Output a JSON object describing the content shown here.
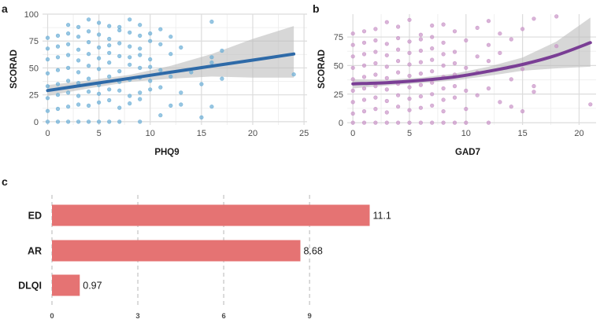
{
  "chart_data": [
    {
      "panel": "a",
      "type": "scatter",
      "xlabel": "PHQ9",
      "ylabel": "SCORAD",
      "xlim": [
        -0.5,
        25.3
      ],
      "ylim": [
        -3,
        100
      ],
      "xticks": [
        0,
        5,
        10,
        15,
        20,
        25
      ],
      "yticks": [
        0,
        25,
        50,
        75,
        100
      ],
      "point_color": "#6baed6",
      "line_color": "#2e6aa8",
      "band_color": "#bdbdbd",
      "fit": {
        "x": [
          0,
          4,
          8,
          12,
          16,
          20,
          24
        ],
        "y": [
          29,
          34.7,
          40.3,
          46,
          51.7,
          57.3,
          63
        ]
      },
      "ci_low": [
        24,
        31,
        37,
        40,
        42,
        41,
        41
      ],
      "ci_high": [
        34,
        38.5,
        43.5,
        52,
        63,
        77,
        89
      ],
      "points": [
        [
          0,
          0
        ],
        [
          1,
          0
        ],
        [
          2,
          0
        ],
        [
          3,
          0
        ],
        [
          4,
          0
        ],
        [
          5,
          0
        ],
        [
          6,
          0
        ],
        [
          7,
          0
        ],
        [
          9,
          0
        ],
        [
          15,
          4
        ],
        [
          11,
          6
        ],
        [
          0,
          10
        ],
        [
          1,
          12
        ],
        [
          2,
          14
        ],
        [
          3,
          16
        ],
        [
          4,
          15
        ],
        [
          5,
          18
        ],
        [
          6,
          20
        ],
        [
          7,
          13
        ],
        [
          8,
          17
        ],
        [
          9,
          21
        ],
        [
          12,
          15
        ],
        [
          13,
          16
        ],
        [
          16,
          14
        ],
        [
          0,
          22
        ],
        [
          1,
          25
        ],
        [
          2,
          27
        ],
        [
          3,
          24
        ],
        [
          4,
          28
        ],
        [
          5,
          26
        ],
        [
          6,
          30
        ],
        [
          7,
          29
        ],
        [
          8,
          24
        ],
        [
          9,
          27
        ],
        [
          10,
          30
        ],
        [
          11,
          32
        ],
        [
          13,
          27
        ],
        [
          15,
          35
        ],
        [
          0,
          33
        ],
        [
          1,
          35
        ],
        [
          2,
          38
        ],
        [
          3,
          36
        ],
        [
          4,
          40
        ],
        [
          5,
          34
        ],
        [
          6,
          42
        ],
        [
          7,
          37
        ],
        [
          8,
          39
        ],
        [
          9,
          41
        ],
        [
          10,
          38
        ],
        [
          12,
          42
        ],
        [
          17,
          40
        ],
        [
          0,
          45
        ],
        [
          1,
          48
        ],
        [
          2,
          50
        ],
        [
          3,
          46
        ],
        [
          4,
          52
        ],
        [
          5,
          49
        ],
        [
          6,
          55
        ],
        [
          7,
          47
        ],
        [
          8,
          53
        ],
        [
          9,
          50
        ],
        [
          10,
          51
        ],
        [
          11,
          48
        ],
        [
          14,
          46
        ],
        [
          16,
          55
        ],
        [
          24,
          44
        ],
        [
          0,
          58
        ],
        [
          1,
          60
        ],
        [
          2,
          62
        ],
        [
          3,
          57
        ],
        [
          4,
          63
        ],
        [
          5,
          59
        ],
        [
          6,
          64
        ],
        [
          7,
          61
        ],
        [
          8,
          60
        ],
        [
          9,
          62
        ],
        [
          10,
          58
        ],
        [
          12,
          63
        ],
        [
          16,
          60
        ],
        [
          0,
          68
        ],
        [
          1,
          70
        ],
        [
          2,
          72
        ],
        [
          3,
          67
        ],
        [
          4,
          74
        ],
        [
          5,
          69
        ],
        [
          6,
          71
        ],
        [
          7,
          73
        ],
        [
          8,
          70
        ],
        [
          9,
          68
        ],
        [
          10,
          75
        ],
        [
          11,
          72
        ],
        [
          13,
          69
        ],
        [
          17,
          66
        ],
        [
          0,
          78
        ],
        [
          1,
          80
        ],
        [
          2,
          82
        ],
        [
          3,
          79
        ],
        [
          4,
          84
        ],
        [
          5,
          81
        ],
        [
          6,
          77
        ],
        [
          7,
          85
        ],
        [
          8,
          83
        ],
        [
          9,
          80
        ],
        [
          10,
          82
        ],
        [
          12,
          79
        ],
        [
          2,
          90
        ],
        [
          4,
          95
        ],
        [
          5,
          92
        ],
        [
          7,
          88
        ],
        [
          8,
          95
        ],
        [
          9,
          90
        ],
        [
          11,
          86
        ],
        [
          16,
          93
        ],
        [
          3,
          88
        ],
        [
          6,
          89
        ]
      ],
      "label": "a"
    },
    {
      "panel": "b",
      "type": "scatter",
      "xlabel": "GAD7",
      "ylabel": "SCORAD",
      "xlim": [
        -0.5,
        21.5
      ],
      "ylim": [
        -2,
        95
      ],
      "xticks": [
        0,
        5,
        10,
        15,
        20
      ],
      "yticks": [
        0,
        25,
        50,
        75
      ],
      "point_color": "#c994c7",
      "line_color": "#7a3e95",
      "band_color": "#bdbdbd",
      "fit": {
        "x": [
          0,
          3,
          6,
          9,
          12,
          15,
          18,
          21
        ],
        "y": [
          34,
          35,
          37,
          40,
          45,
          51,
          59,
          70
        ]
      },
      "ci_low": [
        30,
        32.5,
        34.5,
        37,
        41,
        45.5,
        47.5,
        49
      ],
      "ci_high": [
        38,
        37.5,
        39.5,
        43,
        49,
        57,
        71,
        92
      ],
      "points": [
        [
          0,
          0
        ],
        [
          1,
          0
        ],
        [
          2,
          0
        ],
        [
          3,
          0
        ],
        [
          4,
          0
        ],
        [
          5,
          0
        ],
        [
          6,
          0
        ],
        [
          7,
          0
        ],
        [
          8,
          0
        ],
        [
          9,
          0
        ],
        [
          10,
          0
        ],
        [
          12,
          0
        ],
        [
          0,
          8
        ],
        [
          1,
          10
        ],
        [
          2,
          12
        ],
        [
          3,
          9
        ],
        [
          4,
          14
        ],
        [
          5,
          11
        ],
        [
          6,
          13
        ],
        [
          7,
          15
        ],
        [
          8,
          10
        ],
        [
          10,
          12
        ],
        [
          14,
          14
        ],
        [
          15,
          10
        ],
        [
          0,
          18
        ],
        [
          1,
          20
        ],
        [
          2,
          22
        ],
        [
          3,
          19
        ],
        [
          4,
          24
        ],
        [
          5,
          21
        ],
        [
          6,
          23
        ],
        [
          7,
          25
        ],
        [
          8,
          20
        ],
        [
          9,
          22
        ],
        [
          11,
          24
        ],
        [
          13,
          18
        ],
        [
          0,
          28
        ],
        [
          1,
          30
        ],
        [
          2,
          32
        ],
        [
          3,
          29
        ],
        [
          4,
          34
        ],
        [
          5,
          31
        ],
        [
          6,
          33
        ],
        [
          7,
          35
        ],
        [
          8,
          30
        ],
        [
          9,
          32
        ],
        [
          10,
          28
        ],
        [
          12,
          30
        ],
        [
          16,
          27
        ],
        [
          16,
          32
        ],
        [
          21,
          16
        ],
        [
          0,
          38
        ],
        [
          1,
          40
        ],
        [
          2,
          42
        ],
        [
          3,
          39
        ],
        [
          4,
          44
        ],
        [
          5,
          41
        ],
        [
          6,
          43
        ],
        [
          7,
          45
        ],
        [
          8,
          40
        ],
        [
          9,
          42
        ],
        [
          11,
          44
        ],
        [
          14,
          38
        ],
        [
          0,
          48
        ],
        [
          1,
          50
        ],
        [
          2,
          52
        ],
        [
          3,
          49
        ],
        [
          4,
          54
        ],
        [
          5,
          51
        ],
        [
          6,
          53
        ],
        [
          7,
          55
        ],
        [
          8,
          50
        ],
        [
          9,
          52
        ],
        [
          10,
          48
        ],
        [
          12,
          54
        ],
        [
          15,
          47
        ],
        [
          0,
          58
        ],
        [
          1,
          60
        ],
        [
          2,
          62
        ],
        [
          3,
          59
        ],
        [
          4,
          64
        ],
        [
          5,
          61
        ],
        [
          6,
          63
        ],
        [
          7,
          65
        ],
        [
          8,
          60
        ],
        [
          9,
          62
        ],
        [
          11,
          58
        ],
        [
          13,
          61
        ],
        [
          0,
          68
        ],
        [
          1,
          70
        ],
        [
          2,
          72
        ],
        [
          3,
          69
        ],
        [
          4,
          74
        ],
        [
          5,
          71
        ],
        [
          6,
          73
        ],
        [
          7,
          75
        ],
        [
          8,
          70
        ],
        [
          10,
          72
        ],
        [
          12,
          68
        ],
        [
          14,
          73
        ],
        [
          18,
          67
        ],
        [
          0,
          78
        ],
        [
          1,
          80
        ],
        [
          2,
          82
        ],
        [
          4,
          84
        ],
        [
          6,
          77
        ],
        [
          7,
          85
        ],
        [
          9,
          80
        ],
        [
          11,
          83
        ],
        [
          13,
          78
        ],
        [
          15,
          82
        ],
        [
          3,
          88
        ],
        [
          5,
          90
        ],
        [
          8,
          86
        ],
        [
          12,
          89
        ],
        [
          16,
          91
        ],
        [
          18,
          93
        ]
      ],
      "label": "b"
    },
    {
      "panel": "c",
      "type": "bar",
      "orientation": "horizontal",
      "categories": [
        "ED",
        "AR",
        "DLQI"
      ],
      "values": [
        11.1,
        8.68,
        0.97
      ],
      "value_labels": [
        "11.1",
        "8.68",
        "0.97"
      ],
      "xlim": [
        0,
        11.5
      ],
      "xticks": [
        0,
        3,
        6,
        9
      ],
      "bar_color": "#e57373",
      "label": "c"
    }
  ]
}
